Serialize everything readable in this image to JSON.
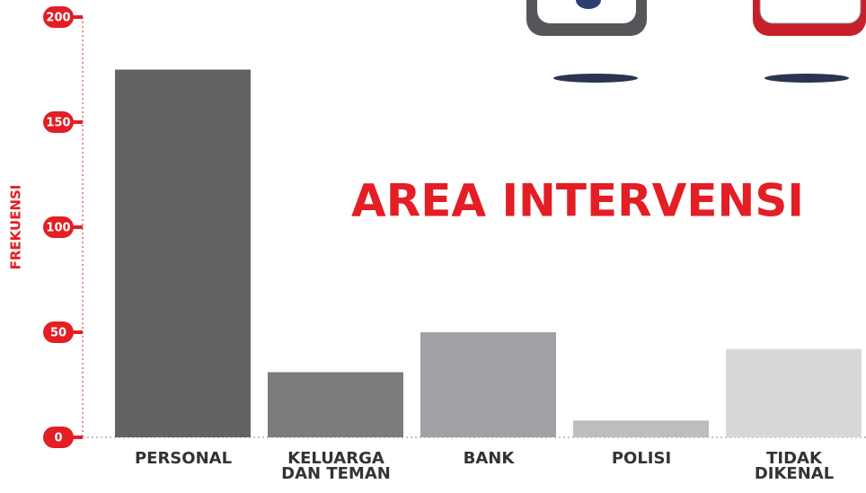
{
  "chart_data": {
    "type": "bar",
    "title": "AREA INTERVENSI",
    "y_label": "FREKUENSI",
    "categories": [
      "PERSONAL",
      "KELUARGA DAN TEMAN",
      "BANK",
      "POLISI",
      "TIDAK DIKENAL"
    ],
    "values": [
      175,
      31,
      50,
      8,
      42
    ],
    "colors": [
      "#636365",
      "#7c7c7e",
      "#a0a1a4",
      "#bcbdbf",
      "#d7d8da"
    ],
    "ylim": [
      0,
      200
    ],
    "yticks": [
      0,
      50,
      100,
      150,
      200
    ]
  }
}
